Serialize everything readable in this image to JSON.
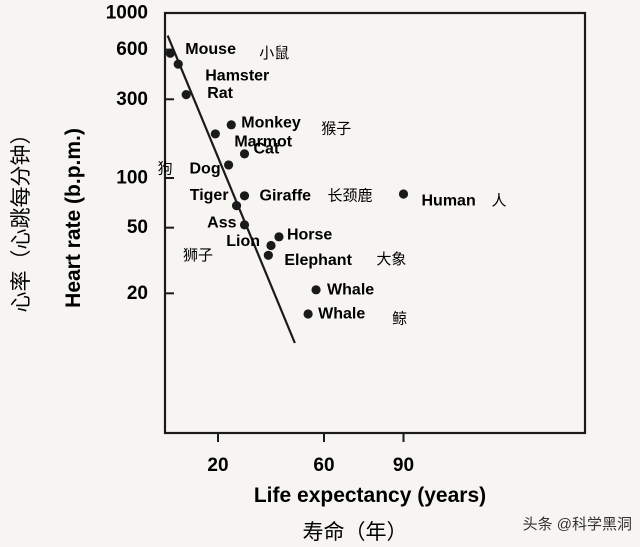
{
  "chart_data": {
    "type": "scatter",
    "xlabel": "Life expectancy (years)",
    "xlabel_cn": "寿命（年）",
    "ylabel": "Heart rate (b.p.m.)",
    "ylabel_cn": "心率（心跳每分钟）",
    "y_scale": "log",
    "x_ticks": [
      20,
      60,
      90
    ],
    "y_ticks": [
      20,
      50,
      100,
      300,
      600,
      1000
    ],
    "trend_line": {
      "type": "line",
      "from": {
        "x": 1,
        "y": 730
      },
      "to": {
        "x": 49,
        "y": 10
      }
    },
    "points": [
      {
        "name": "Mouse",
        "name_cn": "小鼠",
        "x": 2,
        "y": 570
      },
      {
        "name": "Hamster",
        "name_cn": "",
        "x": 5,
        "y": 490
      },
      {
        "name": "Rat",
        "name_cn": "",
        "x": 8,
        "y": 320
      },
      {
        "name": "Monkey",
        "name_cn": "猴子",
        "x": 25,
        "y": 210
      },
      {
        "name": "Marmot",
        "name_cn": "",
        "x": 19,
        "y": 185
      },
      {
        "name": "Cat",
        "name_cn": "",
        "x": 30,
        "y": 140
      },
      {
        "name": "Dog",
        "name_cn": "狗",
        "x": 24,
        "y": 120
      },
      {
        "name": "Giraffe",
        "name_cn": "长颈鹿",
        "x": 30,
        "y": 78
      },
      {
        "name": "Tiger",
        "name_cn": "",
        "x": 27,
        "y": 68
      },
      {
        "name": "Ass",
        "name_cn": "",
        "x": 30,
        "y": 52
      },
      {
        "name": "Horse",
        "name_cn": "",
        "x": 43,
        "y": 44
      },
      {
        "name": "Lion",
        "name_cn": "狮子",
        "x": 40,
        "y": 39
      },
      {
        "name": "Elephant",
        "name_cn": "大象",
        "x": 39,
        "y": 34
      },
      {
        "name": "Whale",
        "name_cn": "",
        "x": 57,
        "y": 21
      },
      {
        "name": "Whale",
        "name_cn": "鲸",
        "x": 54,
        "y": 15
      },
      {
        "name": "Human",
        "name_cn": "人",
        "x": 90,
        "y": 80
      }
    ]
  },
  "watermark": "头条 @科学黑洞"
}
